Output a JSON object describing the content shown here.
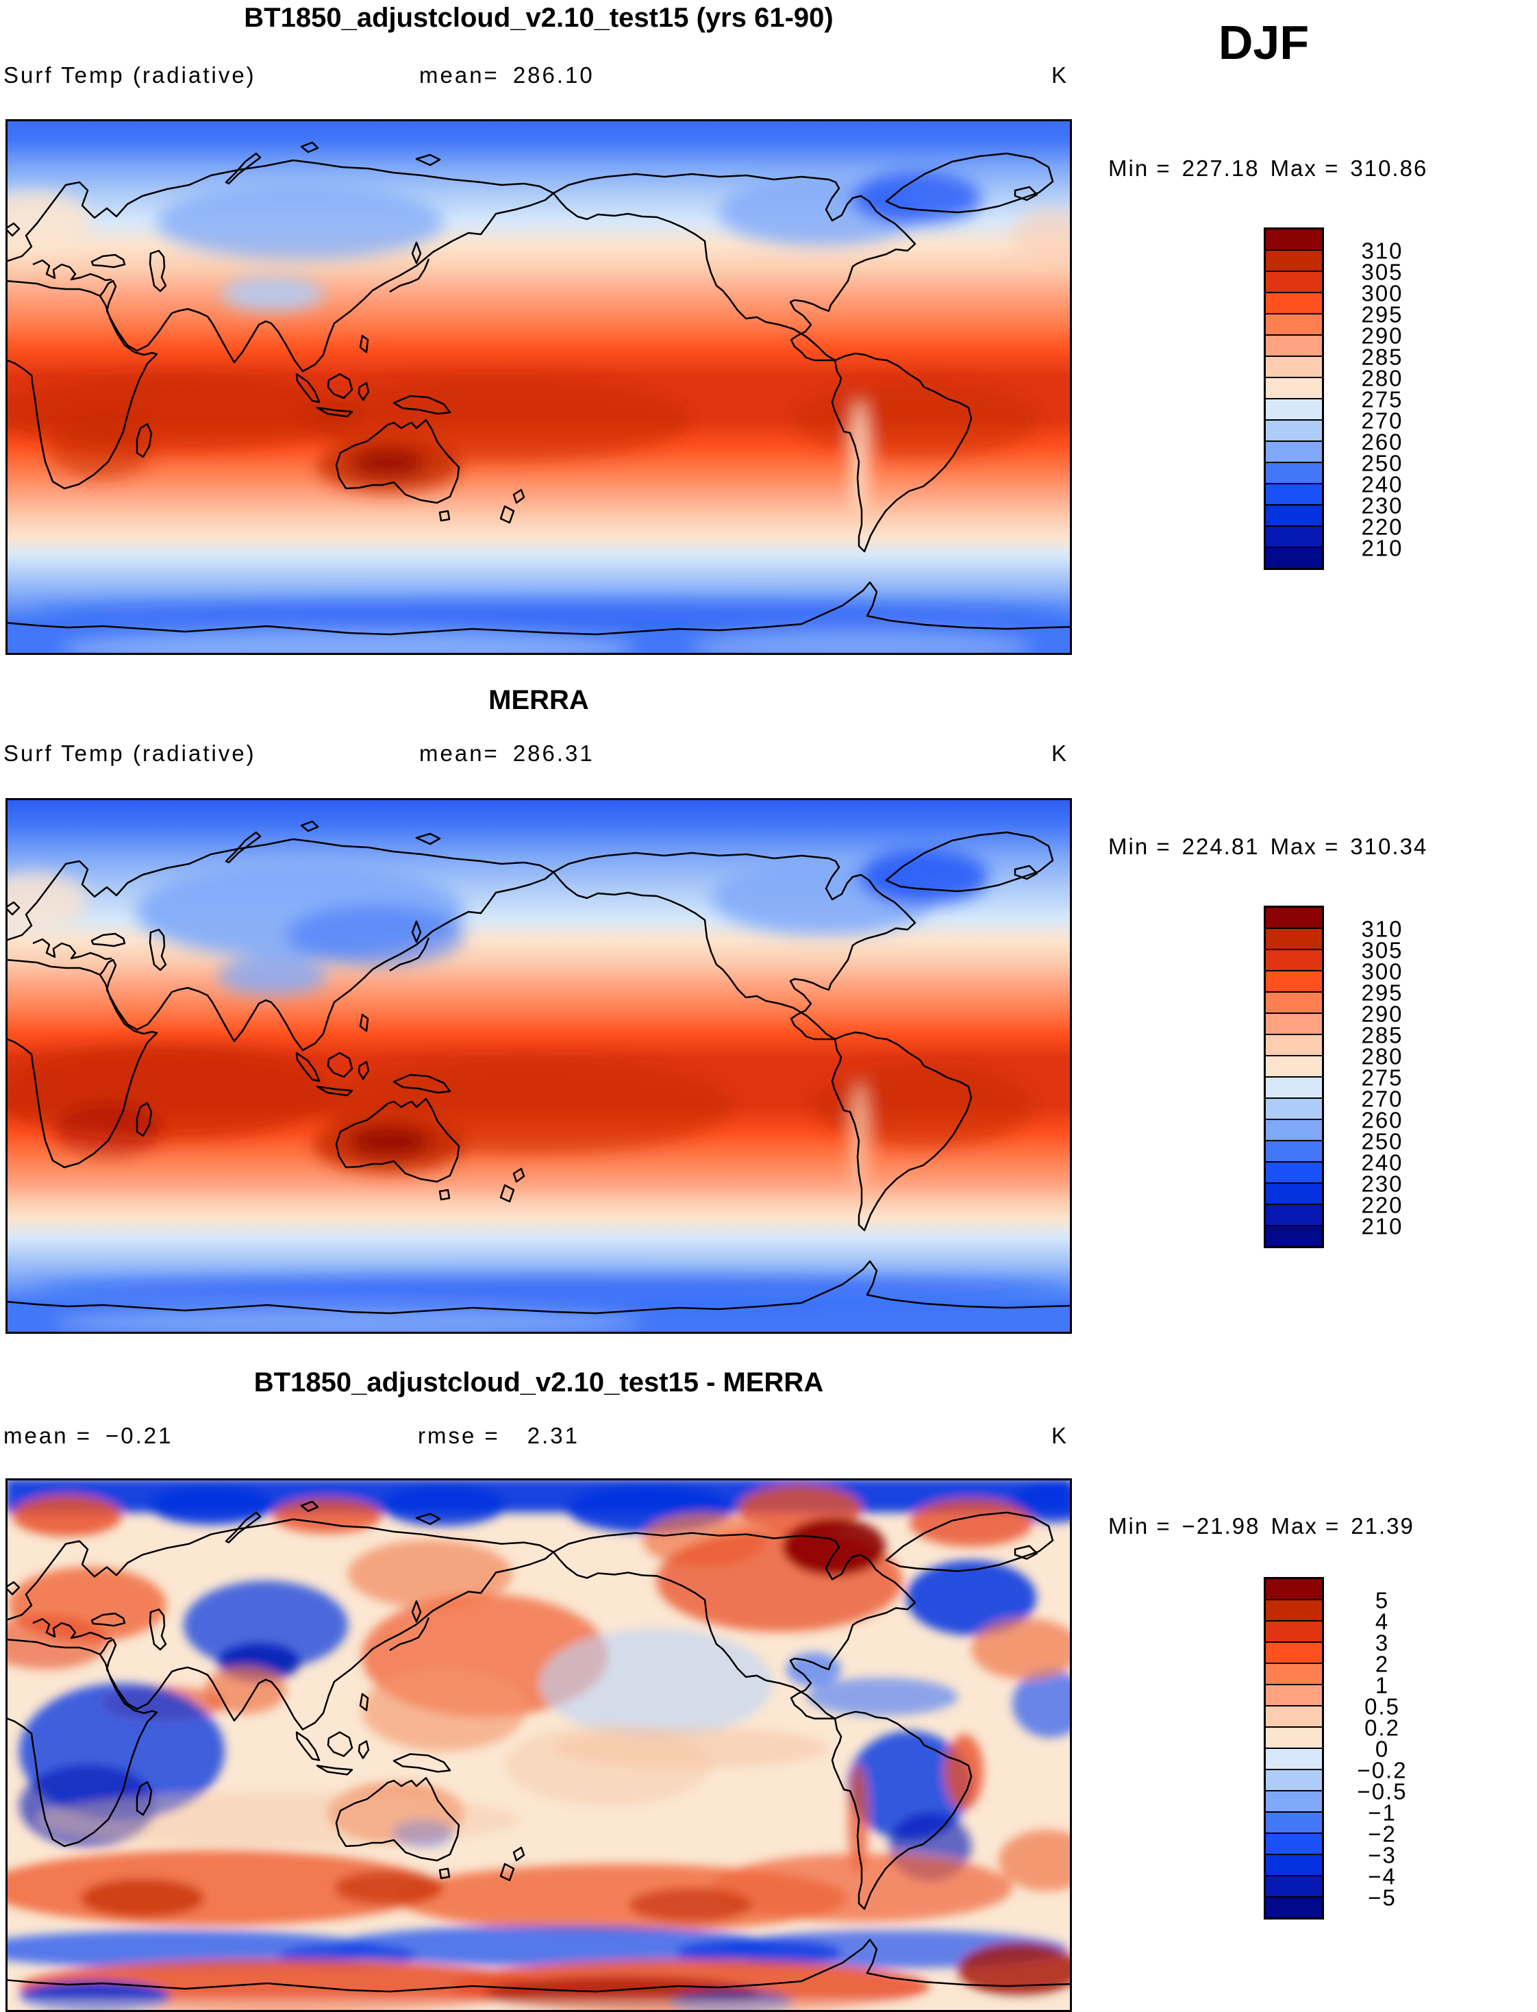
{
  "page": {
    "background": "#FFFFFF"
  },
  "season_label": "DJF",
  "palette": {
    "colors_top_to_bottom": [
      "#8B0000",
      "#C22A00",
      "#E03510",
      "#FF511E",
      "#FF7F50",
      "#FFA380",
      "#FCCDB0",
      "#FDE4CE",
      "#D6E8FA",
      "#AECCF8",
      "#7FA8F8",
      "#4277F8",
      "#1A50F8",
      "#0432E0",
      "#0618B4",
      "#00088C"
    ]
  },
  "panels": [
    {
      "title": "BT1850_adjustcloud_v2.10_test15 (yrs 61-90)",
      "variable": "Surf Temp (radiative)",
      "mean_label": "mean=",
      "mean_value": "286.10",
      "units": "K",
      "min_label": "Min =",
      "min_value": "227.18",
      "max_label": "Max =",
      "max_value": "310.86",
      "colorbar_labels": [
        "310",
        "305",
        "300",
        "295",
        "290",
        "285",
        "280",
        "275",
        "270",
        "260",
        "250",
        "240",
        "230",
        "220",
        "210"
      ]
    },
    {
      "title": "MERRA",
      "variable": "Surf Temp (radiative)",
      "mean_label": "mean=",
      "mean_value": "286.31",
      "units": "K",
      "min_label": "Min =",
      "min_value": "224.81",
      "max_label": "Max =",
      "max_value": "310.34",
      "colorbar_labels": [
        "310",
        "305",
        "300",
        "295",
        "290",
        "285",
        "280",
        "275",
        "270",
        "260",
        "250",
        "240",
        "230",
        "220",
        "210"
      ]
    },
    {
      "title": "BT1850_adjustcloud_v2.10_test15 - MERRA",
      "mean_label": "mean =",
      "mean_value": "−0.21",
      "rmse_label": "rmse =",
      "rmse_value": "2.31",
      "units": "K",
      "min_label": "Min =",
      "min_value": "−21.98",
      "max_label": "Max =",
      "max_value": "21.39",
      "colorbar_labels": [
        "5",
        "4",
        "3",
        "2",
        "1",
        "0.5",
        "0.2",
        "0",
        "−0.2",
        "−0.5",
        "−1",
        "−2",
        "−3",
        "−4",
        "−5"
      ]
    }
  ],
  "chart_data": [
    {
      "type": "heatmap",
      "title": "BT1850_adjustcloud_v2.10_test15 (yrs 61-90)",
      "subtitle": "Surf Temp (radiative)",
      "season": "DJF",
      "units": "K",
      "mean": 286.1,
      "min": 227.18,
      "max": 310.86,
      "contour_levels": [
        210,
        220,
        230,
        240,
        250,
        260,
        270,
        275,
        280,
        285,
        290,
        295,
        300,
        305,
        310
      ],
      "projection": "global cylindrical lat-lon, longitude 0-360E, 90N top to 90S bottom",
      "legend_position": "right",
      "grid": false
    },
    {
      "type": "heatmap",
      "title": "MERRA",
      "subtitle": "Surf Temp (radiative)",
      "season": "DJF",
      "units": "K",
      "mean": 286.31,
      "min": 224.81,
      "max": 310.34,
      "contour_levels": [
        210,
        220,
        230,
        240,
        250,
        260,
        270,
        275,
        280,
        285,
        290,
        295,
        300,
        305,
        310
      ],
      "projection": "global cylindrical lat-lon, longitude 0-360E, 90N top to 90S bottom",
      "legend_position": "right",
      "grid": false
    },
    {
      "type": "heatmap",
      "title": "BT1850_adjustcloud_v2.10_test15 - MERRA",
      "season": "DJF",
      "units": "K",
      "mean": -0.21,
      "rmse": 2.31,
      "min": -21.98,
      "max": 21.39,
      "contour_levels": [
        -5,
        -4,
        -3,
        -2,
        -1,
        -0.5,
        -0.2,
        0,
        0.2,
        0.5,
        1,
        2,
        3,
        4,
        5
      ],
      "projection": "global cylindrical lat-lon, longitude 0-360E, 90N top to 90S bottom",
      "legend_position": "right",
      "grid": false
    }
  ]
}
